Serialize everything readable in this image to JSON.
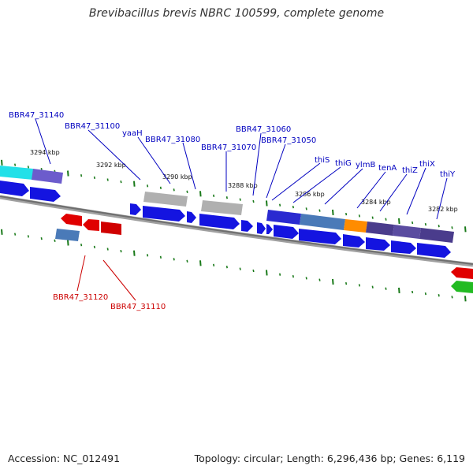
{
  "title": "Brevibacillus brevis NBRC 100599, complete genome",
  "footer": {
    "accession": "Accession: NC_012491",
    "summary": "Topology: circular; Length: 6,296,436 bp; Genes: 6,119"
  },
  "colors": {
    "forward_label": "#0000c0",
    "reverse_label": "#cc0000",
    "backbone": "#777777",
    "tick": "#1a7a1a"
  },
  "scale_labels": [
    "3294 kbp",
    "3292 kbp",
    "3290 kbp",
    "3288 kbp",
    "3286 kbp",
    "3284 kbp",
    "3282 kbp"
  ],
  "forward_labels": [
    "BBR47_31140",
    "BBR47_31100",
    "yaaH",
    "BBR47_31080",
    "BBR47_31070",
    "BBR47_31060",
    "BBR47_31050",
    "thiS",
    "thiG",
    "ylmB",
    "tenA",
    "thiZ",
    "thiX",
    "thiY"
  ],
  "reverse_labels": [
    "BBR47_31120",
    "BBR47_31110"
  ]
}
